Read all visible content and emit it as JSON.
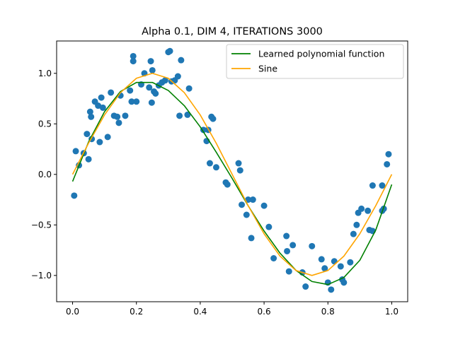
{
  "chart_data": {
    "type": "scatter",
    "title": "Alpha 0.1, DIM 4, ITERATIONS 3000",
    "xlabel": "",
    "ylabel": "",
    "xlim": [
      -0.05,
      1.05
    ],
    "ylim": [
      -1.26,
      1.32
    ],
    "xticks": [
      0.0,
      0.2,
      0.4,
      0.6,
      0.8,
      1.0
    ],
    "xtick_labels": [
      "0.0",
      "0.2",
      "0.4",
      "0.6",
      "0.8",
      "1.0"
    ],
    "yticks": [
      -1.0,
      -0.5,
      0.0,
      0.5,
      1.0
    ],
    "ytick_labels": [
      "−1.0",
      "−0.5",
      "0.0",
      "0.5",
      "1.0"
    ],
    "grid": false,
    "legend_position": "top-right",
    "series": [
      {
        "name": "Learned polynomial function",
        "kind": "line",
        "color": "#008000",
        "x": [
          0.0,
          0.05,
          0.1,
          0.15,
          0.2,
          0.25,
          0.3,
          0.35,
          0.4,
          0.45,
          0.5,
          0.55,
          0.6,
          0.65,
          0.7,
          0.75,
          0.8,
          0.85,
          0.9,
          0.95,
          1.0
        ],
        "y": [
          -0.07,
          0.32,
          0.62,
          0.82,
          0.91,
          0.91,
          0.83,
          0.68,
          0.47,
          0.22,
          -0.04,
          -0.31,
          -0.56,
          -0.78,
          -0.95,
          -1.06,
          -1.09,
          -1.02,
          -0.85,
          -0.55,
          -0.1
        ]
      },
      {
        "name": "Sine",
        "kind": "line",
        "color": "#ffa500",
        "x": [
          0.0,
          0.05,
          0.1,
          0.15,
          0.2,
          0.25,
          0.3,
          0.35,
          0.4,
          0.45,
          0.5,
          0.55,
          0.6,
          0.65,
          0.7,
          0.75,
          0.8,
          0.85,
          0.9,
          0.95,
          1.0
        ],
        "y": [
          0.0,
          0.309,
          0.588,
          0.809,
          0.951,
          1.0,
          0.951,
          0.809,
          0.588,
          0.309,
          0.0,
          -0.309,
          -0.588,
          -0.809,
          -0.951,
          -1.0,
          -0.951,
          -0.809,
          -0.588,
          -0.309,
          0.0
        ]
      },
      {
        "kind": "scatter",
        "color": "#1f77b4",
        "points": [
          [
            0.005,
            -0.21
          ],
          [
            0.01,
            0.23
          ],
          [
            0.02,
            0.09
          ],
          [
            0.035,
            0.21
          ],
          [
            0.045,
            0.4
          ],
          [
            0.05,
            0.15
          ],
          [
            0.055,
            0.62
          ],
          [
            0.058,
            0.57
          ],
          [
            0.06,
            0.35
          ],
          [
            0.07,
            0.72
          ],
          [
            0.08,
            0.68
          ],
          [
            0.085,
            0.32
          ],
          [
            0.09,
            0.76
          ],
          [
            0.095,
            0.66
          ],
          [
            0.11,
            0.37
          ],
          [
            0.12,
            0.81
          ],
          [
            0.13,
            0.58
          ],
          [
            0.14,
            0.57
          ],
          [
            0.145,
            0.51
          ],
          [
            0.15,
            0.78
          ],
          [
            0.165,
            0.58
          ],
          [
            0.18,
            0.83
          ],
          [
            0.185,
            0.72
          ],
          [
            0.19,
            1.17
          ],
          [
            0.19,
            1.12
          ],
          [
            0.2,
            0.72
          ],
          [
            0.215,
            0.89
          ],
          [
            0.225,
            1.0
          ],
          [
            0.24,
            0.86
          ],
          [
            0.245,
            1.12
          ],
          [
            0.248,
            0.71
          ],
          [
            0.25,
            1.03
          ],
          [
            0.255,
            0.82
          ],
          [
            0.26,
            0.8
          ],
          [
            0.27,
            0.88
          ],
          [
            0.28,
            0.91
          ],
          [
            0.29,
            0.93
          ],
          [
            0.3,
            1.21
          ],
          [
            0.305,
            1.22
          ],
          [
            0.31,
            0.92
          ],
          [
            0.32,
            0.93
          ],
          [
            0.33,
            0.97
          ],
          [
            0.335,
            0.58
          ],
          [
            0.34,
            1.13
          ],
          [
            0.36,
            0.59
          ],
          [
            0.365,
            0.85
          ],
          [
            0.41,
            0.44
          ],
          [
            0.42,
            0.33
          ],
          [
            0.425,
            0.44
          ],
          [
            0.43,
            0.11
          ],
          [
            0.435,
            0.57
          ],
          [
            0.44,
            0.55
          ],
          [
            0.45,
            0.07
          ],
          [
            0.48,
            -0.08
          ],
          [
            0.485,
            -0.1
          ],
          [
            0.52,
            0.11
          ],
          [
            0.525,
            0.04
          ],
          [
            0.53,
            -0.3
          ],
          [
            0.545,
            -0.4
          ],
          [
            0.55,
            -0.25
          ],
          [
            0.56,
            -0.63
          ],
          [
            0.565,
            -0.25
          ],
          [
            0.6,
            -0.31
          ],
          [
            0.615,
            -0.52
          ],
          [
            0.63,
            -0.83
          ],
          [
            0.67,
            -0.61
          ],
          [
            0.672,
            -0.76
          ],
          [
            0.678,
            -0.96
          ],
          [
            0.69,
            -0.7
          ],
          [
            0.72,
            -0.97
          ],
          [
            0.73,
            -1.11
          ],
          [
            0.75,
            -0.71
          ],
          [
            0.78,
            -0.84
          ],
          [
            0.79,
            -0.93
          ],
          [
            0.8,
            -1.07
          ],
          [
            0.81,
            -1.14
          ],
          [
            0.82,
            -0.86
          ],
          [
            0.84,
            -0.91
          ],
          [
            0.845,
            -1.04
          ],
          [
            0.85,
            -1.07
          ],
          [
            0.87,
            -0.87
          ],
          [
            0.88,
            -0.59
          ],
          [
            0.89,
            -0.5
          ],
          [
            0.895,
            -0.38
          ],
          [
            0.905,
            -0.34
          ],
          [
            0.925,
            -0.36
          ],
          [
            0.93,
            -0.55
          ],
          [
            0.94,
            -0.56
          ],
          [
            0.94,
            -0.11
          ],
          [
            0.97,
            -0.11
          ],
          [
            0.97,
            -0.36
          ],
          [
            0.975,
            -0.34
          ],
          [
            0.985,
            0.1
          ],
          [
            0.99,
            0.2
          ]
        ]
      }
    ]
  }
}
